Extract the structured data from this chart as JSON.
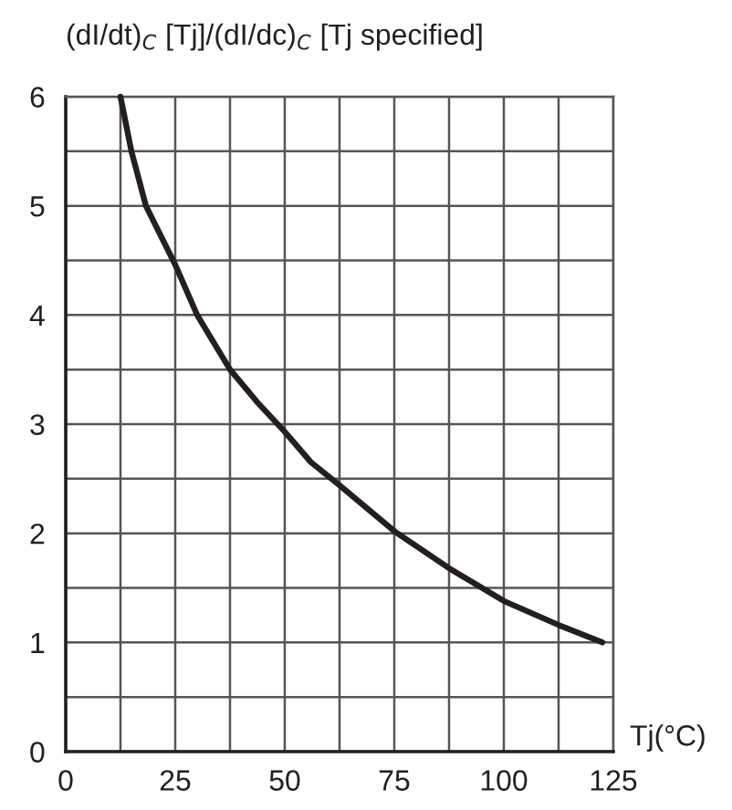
{
  "chart_data": {
    "type": "line",
    "ylabel": "(dI/dt)$_{C}$ [Tj]/(dI/dc)$_{C}$ [Tj specified]",
    "xlabel": "Tj(°C)",
    "x": [
      12.5,
      15,
      18.3,
      25,
      30,
      37.5,
      43.75,
      50,
      56,
      62.5,
      75,
      87.5,
      100,
      112.5,
      122.5
    ],
    "series": [
      {
        "color": "#231f20",
        "values": [
          6,
          5.5,
          5,
          4.46,
          4,
          3.5,
          3.2,
          2.93,
          2.65,
          2.44,
          2.02,
          1.68,
          1.38,
          1.16,
          1.0
        ]
      }
    ],
    "xlim": [
      0,
      125
    ],
    "xticks": [
      0,
      {
        "value": 12.5,
        "label": null
      },
      25,
      {
        "value": 37.5,
        "label": null
      },
      50,
      {
        "value": 62.5,
        "label": null
      },
      75,
      {
        "value": 87.5,
        "label": null
      },
      100,
      {
        "value": 112.5,
        "label": null
      },
      125
    ],
    "ylim": [
      0,
      6
    ],
    "yticks": [
      0,
      {
        "value": 0.5,
        "label": null
      },
      1,
      {
        "value": 1.5,
        "label": null
      },
      2,
      {
        "value": 2.5,
        "label": null
      },
      3,
      {
        "value": 3.5,
        "label": null
      },
      4,
      {
        "value": 4.5,
        "label": null
      },
      5,
      {
        "value": 5.5,
        "label": null
      },
      6
    ],
    "grid": true,
    "legend": false,
    "marker": "none",
    "line_style": "solid"
  }
}
